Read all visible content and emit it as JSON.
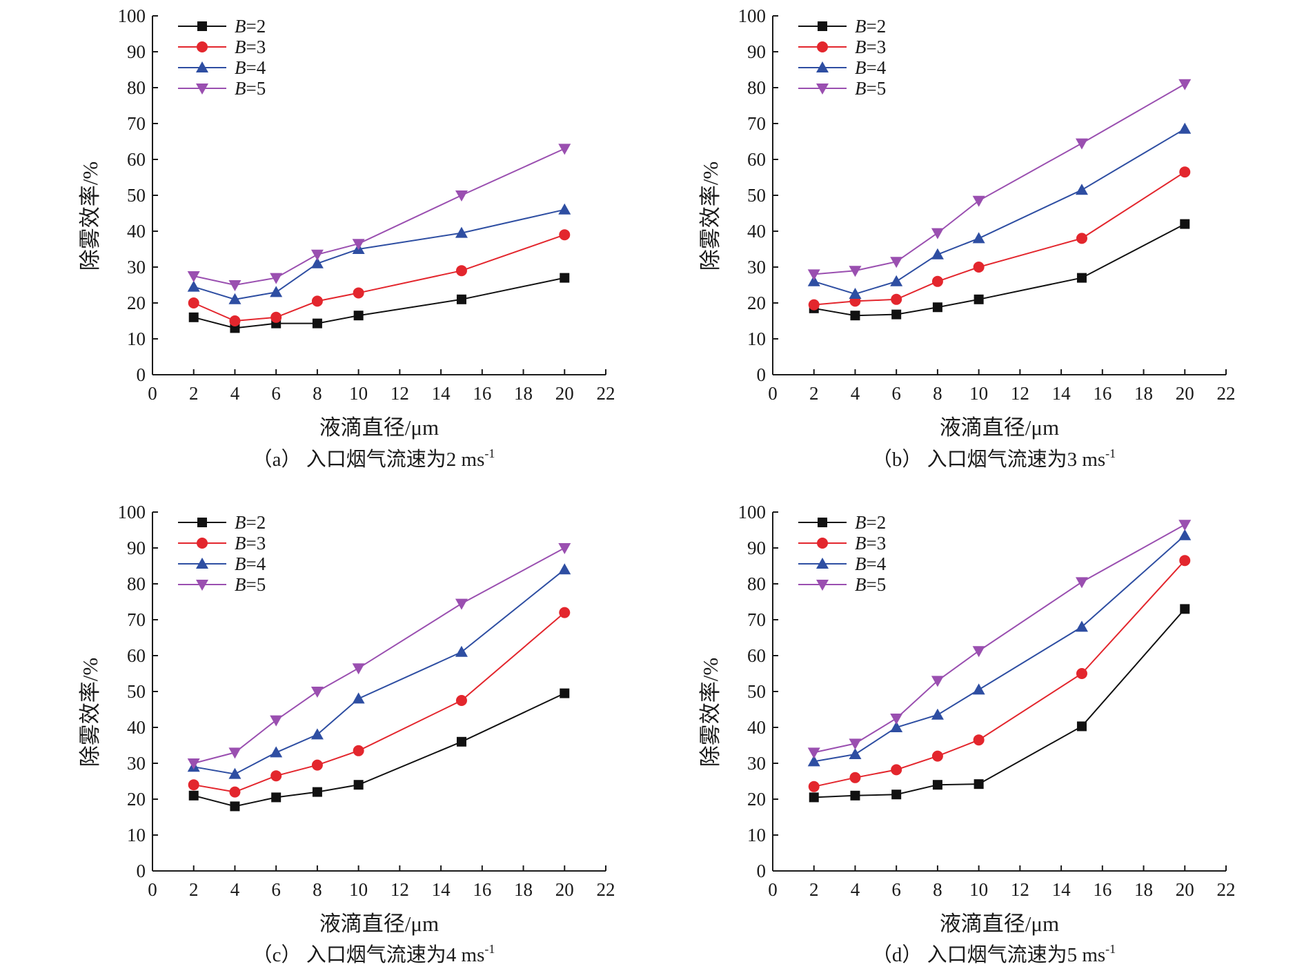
{
  "chart_data": [
    {
      "type": "line",
      "caption": {
        "prefix": "（a） 入口烟气流速为2 ms",
        "sup": "-1"
      },
      "xlabel": "液滴直径/μm",
      "ylabel": "除雾效率/%",
      "xlim": [
        0,
        22
      ],
      "ylim": [
        0,
        100
      ],
      "xticks": [
        "0",
        "2",
        "4",
        "6",
        "8",
        "10",
        "12",
        "14",
        "16",
        "18",
        "20",
        "22"
      ],
      "yticks": [
        "0",
        "10",
        "20",
        "30",
        "40",
        "50",
        "60",
        "70",
        "80",
        "90",
        "100"
      ],
      "x": [
        2,
        4,
        6,
        8,
        10,
        15,
        20
      ],
      "series": [
        {
          "name": "B=2",
          "label_var": "B",
          "label_val": "=2",
          "values": [
            16,
            13,
            14.3,
            14.3,
            16.5,
            21,
            27
          ]
        },
        {
          "name": "B=3",
          "label_var": "B",
          "label_val": "=3",
          "values": [
            20,
            15,
            16,
            20.5,
            22.8,
            29,
            39
          ]
        },
        {
          "name": "B=4",
          "label_var": "B",
          "label_val": "=4",
          "values": [
            24.5,
            21,
            23,
            31,
            35,
            39.5,
            46
          ]
        },
        {
          "name": "B=5",
          "label_var": "B",
          "label_val": "=5",
          "values": [
            27.5,
            25,
            27,
            33.5,
            36.5,
            50,
            63
          ]
        }
      ],
      "legend_position": "top-left",
      "grid": false
    },
    {
      "type": "line",
      "caption": {
        "prefix": "（b） 入口烟气流速为3 ms",
        "sup": "-1"
      },
      "xlabel": "液滴直径/μm",
      "ylabel": "除雾效率/%",
      "xlim": [
        0,
        22
      ],
      "ylim": [
        0,
        100
      ],
      "xticks": [
        "0",
        "2",
        "4",
        "6",
        "8",
        "10",
        "12",
        "14",
        "16",
        "18",
        "20",
        "22"
      ],
      "yticks": [
        "0",
        "10",
        "20",
        "30",
        "40",
        "50",
        "60",
        "70",
        "80",
        "90",
        "100"
      ],
      "x": [
        2,
        4,
        6,
        8,
        10,
        15,
        20
      ],
      "series": [
        {
          "name": "B=2",
          "label_var": "B",
          "label_val": "=2",
          "values": [
            18.5,
            16.5,
            16.8,
            18.8,
            21,
            27,
            42
          ]
        },
        {
          "name": "B=3",
          "label_var": "B",
          "label_val": "=3",
          "values": [
            19.5,
            20.5,
            21,
            26,
            30,
            38,
            56.5
          ]
        },
        {
          "name": "B=4",
          "label_var": "B",
          "label_val": "=4",
          "values": [
            26,
            22.5,
            26,
            33.5,
            38,
            51.5,
            68.5
          ]
        },
        {
          "name": "B=5",
          "label_var": "B",
          "label_val": "=5",
          "values": [
            28,
            29,
            31.5,
            39.5,
            48.5,
            64.5,
            81
          ]
        }
      ],
      "legend_position": "top-left",
      "grid": false
    },
    {
      "type": "line",
      "caption": {
        "prefix": "（c） 入口烟气流速为4 ms",
        "sup": "-1"
      },
      "xlabel": "液滴直径/μm",
      "ylabel": "除雾效率/%",
      "xlim": [
        0,
        22
      ],
      "ylim": [
        0,
        100
      ],
      "xticks": [
        "0",
        "2",
        "4",
        "6",
        "8",
        "10",
        "12",
        "14",
        "16",
        "18",
        "20",
        "22"
      ],
      "yticks": [
        "0",
        "10",
        "20",
        "30",
        "40",
        "50",
        "60",
        "70",
        "80",
        "90",
        "100"
      ],
      "x": [
        2,
        4,
        6,
        8,
        10,
        15,
        20
      ],
      "series": [
        {
          "name": "B=2",
          "label_var": "B",
          "label_val": "=2",
          "values": [
            21,
            18,
            20.5,
            22,
            24,
            36,
            49.5
          ]
        },
        {
          "name": "B=3",
          "label_var": "B",
          "label_val": "=3",
          "values": [
            24,
            22,
            26.5,
            29.5,
            33.5,
            47.5,
            72
          ]
        },
        {
          "name": "B=4",
          "label_var": "B",
          "label_val": "=4",
          "values": [
            29,
            27,
            33,
            38,
            48,
            61,
            84
          ]
        },
        {
          "name": "B=5",
          "label_var": "B",
          "label_val": "=5",
          "values": [
            30,
            33,
            42,
            50,
            56.5,
            74.5,
            90
          ]
        }
      ],
      "legend_position": "top-left",
      "grid": false
    },
    {
      "type": "line",
      "caption": {
        "prefix": "（d） 入口烟气流速为5 ms",
        "sup": "-1"
      },
      "xlabel": "液滴直径/μm",
      "ylabel": "除雾效率/%",
      "xlim": [
        0,
        22
      ],
      "ylim": [
        0,
        100
      ],
      "xticks": [
        "0",
        "2",
        "4",
        "6",
        "8",
        "10",
        "12",
        "14",
        "16",
        "18",
        "20",
        "22"
      ],
      "yticks": [
        "0",
        "10",
        "20",
        "30",
        "40",
        "50",
        "60",
        "70",
        "80",
        "90",
        "100"
      ],
      "x": [
        2,
        4,
        6,
        8,
        10,
        15,
        20
      ],
      "series": [
        {
          "name": "B=2",
          "label_var": "B",
          "label_val": "=2",
          "values": [
            20.5,
            21,
            21.3,
            24,
            24.2,
            40.3,
            73
          ]
        },
        {
          "name": "B=3",
          "label_var": "B",
          "label_val": "=3",
          "values": [
            23.5,
            26,
            28.2,
            32,
            36.5,
            55,
            86.5
          ]
        },
        {
          "name": "B=4",
          "label_var": "B",
          "label_val": "=4",
          "values": [
            30.5,
            32.5,
            40,
            43.5,
            50.5,
            68,
            93.5
          ]
        },
        {
          "name": "B=5",
          "label_var": "B",
          "label_val": "=5",
          "values": [
            33,
            35.5,
            42.5,
            53,
            61.3,
            80.5,
            96.5
          ]
        }
      ],
      "legend_position": "top-left",
      "grid": false
    }
  ],
  "style": {
    "series_colors": [
      "#111111",
      "#e3262d",
      "#2e4ea2",
      "#9a4fb0"
    ],
    "series_markers": [
      "square",
      "circle",
      "triangle-up",
      "triangle-down"
    ]
  }
}
